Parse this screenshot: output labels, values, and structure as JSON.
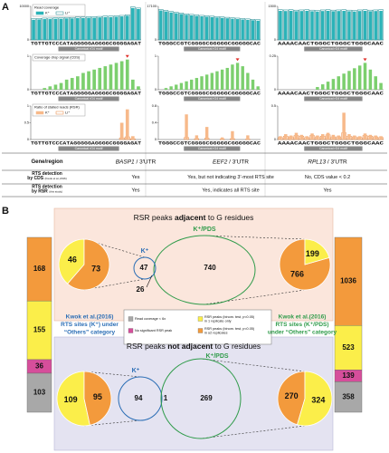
{
  "chart_data": [
    {
      "type": "bar",
      "title": "Read coverage",
      "ylim": [
        0,
        10000
      ],
      "yticks": [
        0,
        10000
      ],
      "series": [
        {
          "name": "K⁺",
          "color": "#2bb3b8",
          "values": [
            6000,
            6100,
            6200,
            6200,
            6300,
            6300,
            6400,
            6400,
            6500,
            6500,
            6600,
            6600,
            6700,
            6800,
            6800,
            6900,
            7000,
            7200,
            9500,
            9200
          ]
        },
        {
          "name": "Li⁺",
          "color": "#18858c",
          "values": [
            6300,
            6400,
            6500,
            6500,
            6600,
            6600,
            6700,
            6700,
            6800,
            6800,
            6900,
            6900,
            7000,
            7100,
            7100,
            7200,
            7300,
            7500,
            9800,
            9500
          ]
        }
      ]
    },
    {
      "type": "bar",
      "ylim": [
        0,
        17100
      ],
      "yticks": [
        0,
        17100
      ],
      "series": [
        {
          "color": "#2bb3b8",
          "values": [
            15000,
            14500,
            14000,
            13600,
            13200,
            12800,
            12500,
            12200,
            12000,
            11800,
            11600,
            11400,
            11200,
            11000,
            10800,
            10600,
            10400,
            10200,
            10000,
            9800
          ]
        },
        {
          "color": "#18858c",
          "values": [
            15500,
            15000,
            14500,
            14100,
            13700,
            13300,
            13000,
            12700,
            12500,
            12300,
            12100,
            11900,
            11700,
            11500,
            11300,
            11100,
            10900,
            10700,
            10500,
            10300
          ]
        }
      ]
    },
    {
      "type": "bar",
      "ylim": [
        0,
        1500
      ],
      "yticks": [
        0,
        1500
      ],
      "series": [
        {
          "color": "#2bb3b8",
          "values": [
            1300,
            1290,
            1300,
            1280,
            1290,
            1300,
            1280,
            1270,
            1290,
            1300,
            1280,
            1290,
            1300,
            1280,
            1270,
            1290,
            1300,
            1280,
            1290,
            1300
          ]
        },
        {
          "color": "#18858c",
          "values": [
            1350,
            1340,
            1350,
            1330,
            1340,
            1350,
            1330,
            1320,
            1340,
            1350,
            1330,
            1340,
            1350,
            1330,
            1320,
            1340,
            1350,
            1330,
            1340,
            1350
          ]
        }
      ]
    },
    {
      "type": "bar",
      "title": "Coverage drop signal (CDS)",
      "ylim": [
        0,
        1
      ],
      "yticks": [
        0,
        1
      ],
      "series": [
        {
          "color": "#7ccf6e",
          "values": [
            0,
            0,
            0.05,
            0.1,
            0.15,
            0.2,
            0.3,
            0.35,
            0.4,
            0.5,
            0.55,
            0.6,
            0.65,
            0.7,
            0.75,
            0.8,
            0.85,
            0.9,
            0.3,
            0.1
          ]
        }
      ]
    },
    {
      "type": "bar",
      "ylim": [
        0,
        1
      ],
      "yticks": [
        0,
        1
      ],
      "series": [
        {
          "color": "#7ccf6e",
          "values": [
            0,
            0.05,
            0.1,
            0.15,
            0.2,
            0.25,
            0.3,
            0.35,
            0.4,
            0.45,
            0.5,
            0.55,
            0.6,
            0.65,
            0.75,
            0.8,
            0.7,
            0.5,
            0.3,
            0.1
          ]
        }
      ]
    },
    {
      "type": "bar",
      "ylim": [
        0,
        0.25
      ],
      "yticks": [
        0,
        0.25
      ],
      "series": [
        {
          "color": "#7ccf6e",
          "values": [
            0,
            0,
            0,
            0,
            0,
            0,
            0,
            0.02,
            0.04,
            0.06,
            0.08,
            0.1,
            0.12,
            0.14,
            0.16,
            0.18,
            0.2,
            0.15,
            0.1,
            0.05
          ]
        }
      ]
    },
    {
      "type": "bar",
      "title": "Ratio of stalled reads (RSR)",
      "ylim": [
        0,
        1
      ],
      "yticks": [
        0,
        0.5,
        1
      ],
      "series": [
        {
          "name": "K⁺",
          "color": "#f7b98a",
          "values": [
            0,
            0,
            0,
            0,
            0,
            0,
            0,
            0,
            0,
            0,
            0,
            0,
            0,
            0,
            0,
            0,
            0.5,
            0.9,
            0.1,
            0
          ]
        },
        {
          "name": "Li⁺",
          "color": "#e8833a",
          "values": [
            0,
            0,
            0,
            0,
            0,
            0,
            0,
            0,
            0,
            0,
            0,
            0,
            0,
            0,
            0,
            0,
            0.05,
            0.08,
            0.02,
            0
          ]
        }
      ]
    },
    {
      "type": "bar",
      "ylim": [
        0,
        0.8
      ],
      "yticks": [
        0,
        0.4,
        0.8
      ],
      "series": [
        {
          "color": "#f7b98a",
          "values": [
            0,
            0,
            0,
            0,
            0,
            0.6,
            0,
            0.1,
            0,
            0.3,
            0,
            0,
            0.05,
            0,
            0.2,
            0,
            0,
            0.1,
            0,
            0
          ]
        },
        {
          "color": "#e8833a",
          "values": [
            0,
            0,
            0,
            0,
            0,
            0.05,
            0,
            0.02,
            0,
            0.03,
            0,
            0,
            0.01,
            0,
            0.02,
            0,
            0,
            0.01,
            0,
            0
          ]
        }
      ]
    },
    {
      "type": "bar",
      "ylim": [
        0,
        0.5
      ],
      "yticks": [
        0,
        0.5
      ],
      "series": [
        {
          "color": "#f7b98a",
          "values": [
            0.05,
            0.08,
            0.06,
            0.1,
            0.07,
            0.05,
            0.09,
            0.06,
            0.08,
            0.1,
            0.07,
            0.06,
            0.4,
            0.08,
            0.06,
            0.05,
            0.09,
            0.07,
            0.06,
            0.05
          ]
        },
        {
          "color": "#e8833a",
          "values": [
            0.03,
            0.05,
            0.04,
            0.06,
            0.05,
            0.03,
            0.06,
            0.04,
            0.05,
            0.07,
            0.04,
            0.04,
            0.1,
            0.05,
            0.04,
            0.03,
            0.06,
            0.05,
            0.04,
            0.03
          ]
        }
      ]
    }
  ],
  "panel_a": {
    "label": "A",
    "sequences": [
      "TGTTGTCCCATAGGGGGAGGGGCGGGGAGAT",
      "TGGGCCGTCGGGGCGGGGGCGGGGGCAC",
      "AAAACAACTGGGCTGGGCTGGGCAAC"
    ],
    "motif_label": "Canonical rG4 motif",
    "table": {
      "header": [
        "Gene/region",
        {
          "gene": "BASP1",
          "rest": " / 3′UTR"
        },
        {
          "gene": "EEF2",
          "rest": " / 3′UTR"
        },
        {
          "gene": "RPL13",
          "rest": " / 3′UTR"
        }
      ],
      "rows": [
        {
          "label": "RTS detection",
          "label2": "by CDS",
          "source": "(Kwok et al.,2016)",
          "cells": [
            "Yes",
            "Yes, but not indicating 3′-most RTS site",
            "No, CDS value < 0.2"
          ]
        },
        {
          "label": "RTS detection",
          "label2": "by RSR",
          "source": "(this study)",
          "cells": [
            "Yes",
            "Yes, indicates all RTS site",
            "Yes"
          ]
        }
      ]
    }
  },
  "panel_b": {
    "label": "B",
    "categories": [
      {
        "label": [
          "RSR peaks (binom. test, p<0.05)",
          "in ≥2 replicates"
        ],
        "color": "#f39a3c"
      },
      {
        "label": [
          "RSR peaks (binom. test, p<0.05)",
          "in 1 replicate only"
        ],
        "color": "#fbee4a"
      },
      {
        "label": [
          "No significant RSR peak"
        ],
        "color": "#d64e9b"
      },
      {
        "label": [
          "Read coverage < 6x"
        ],
        "color": "#a8a8a8"
      }
    ],
    "left_bar": {
      "values": [
        168,
        155,
        36,
        103
      ]
    },
    "right_bar": {
      "values": [
        1036,
        523,
        139,
        358
      ]
    },
    "left_note": [
      "Kwok et al.(2016)",
      "RTS sites (K⁺) under",
      "“Others” category"
    ],
    "right_note": [
      "Kwok et al.(2016)",
      "RTS sites (K⁺/PDS)",
      "under “Others” category"
    ],
    "top": {
      "title_parts": [
        "RSR peaks ",
        "adjacent",
        " to G residues"
      ],
      "left_pie": {
        "values": [
          46,
          73
        ],
        "colors": [
          "#fbee4a",
          "#f39a3c"
        ]
      },
      "right_pie": {
        "values": [
          766,
          199
        ],
        "colors": [
          "#f39a3c",
          "#fbee4a"
        ]
      },
      "venn": {
        "labels": [
          "K⁺",
          "K⁺/PDS"
        ],
        "counts": [
          47,
          26,
          740
        ]
      }
    },
    "bottom": {
      "title_parts": [
        "RSR peaks ",
        "not adjacent",
        " to G residues"
      ],
      "left_pie": {
        "values": [
          109,
          95
        ],
        "colors": [
          "#fbee4a",
          "#f39a3c"
        ]
      },
      "right_pie": {
        "values": [
          270,
          324
        ],
        "colors": [
          "#f39a3c",
          "#fbee4a"
        ]
      },
      "venn": {
        "labels": [
          "K⁺",
          "K⁺/PDS"
        ],
        "counts": [
          94,
          1,
          269
        ]
      }
    }
  }
}
